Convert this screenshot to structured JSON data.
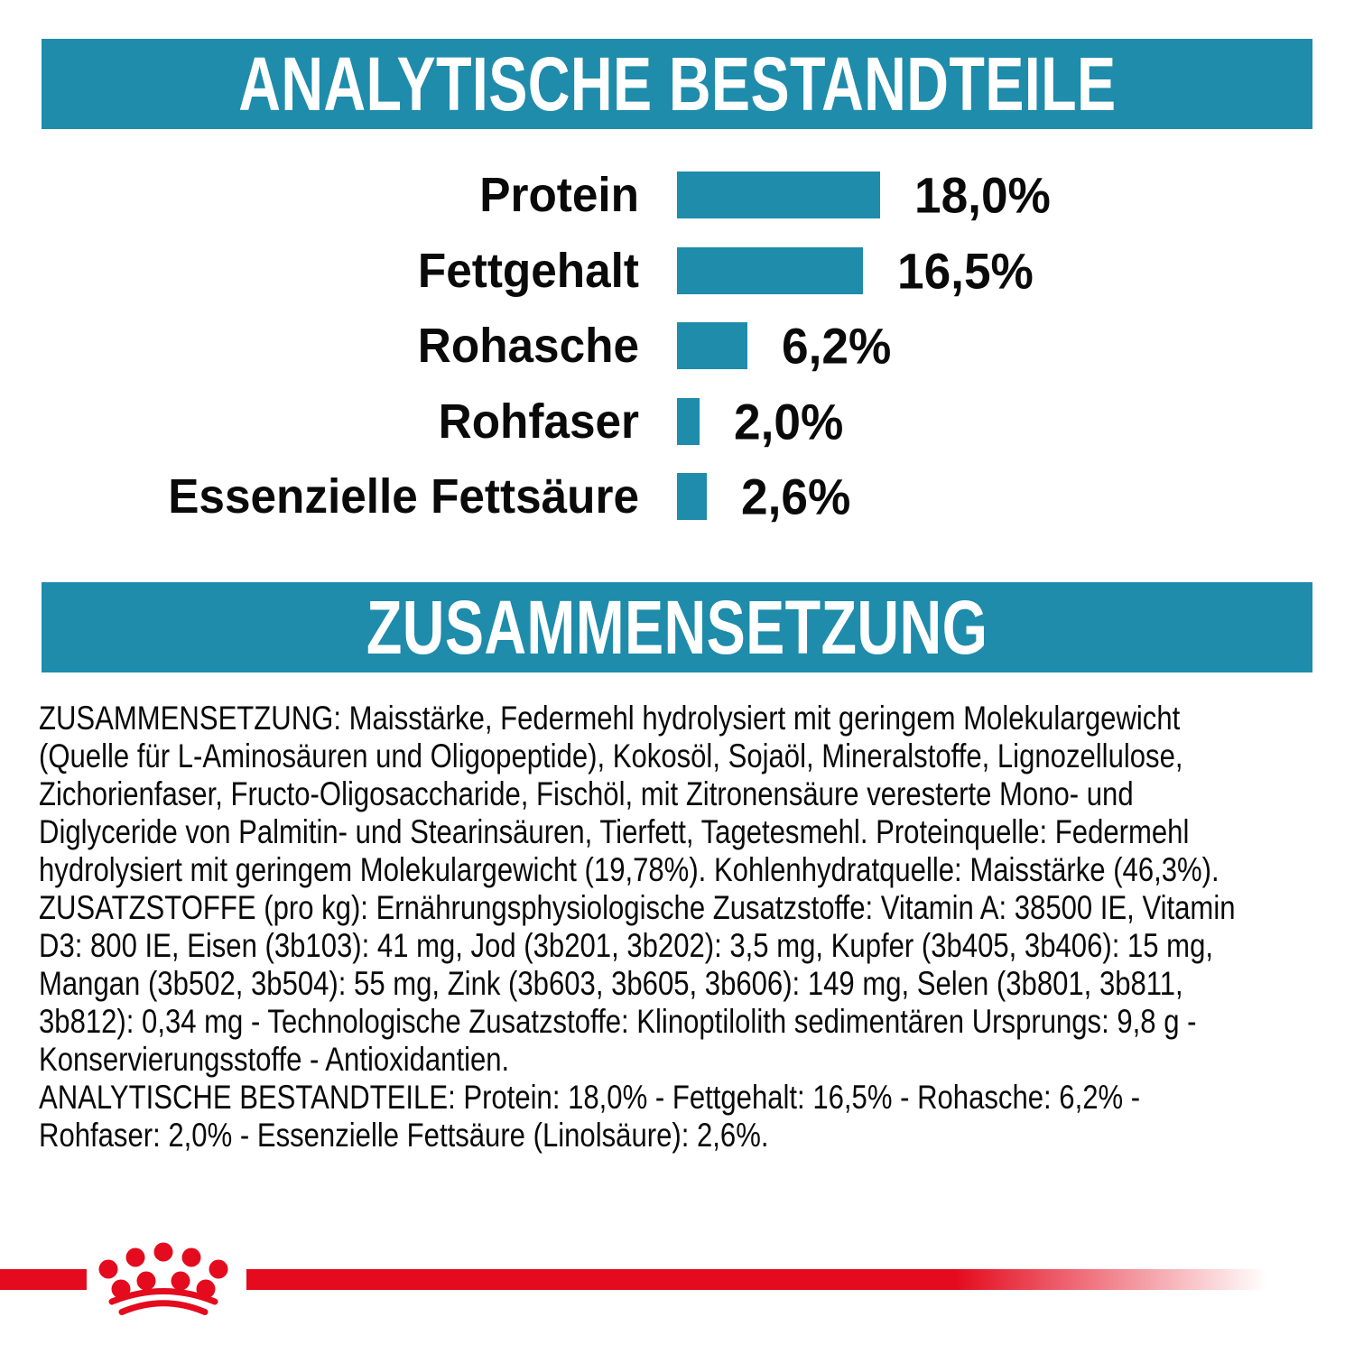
{
  "colors": {
    "teal": "#1e8caa",
    "brand_red": "#e40b1e",
    "text": "#0a0a0a"
  },
  "sections": {
    "analytical": {
      "title": "ANALYTISCHE BESTANDTEILE"
    },
    "composition": {
      "title": "ZUSAMMENSETZUNG"
    }
  },
  "chart_data": {
    "type": "bar",
    "orientation": "horizontal",
    "title": "ANALYTISCHE BESTANDTEILE",
    "categories": [
      "Protein",
      "Fettgehalt",
      "Rohasche",
      "Rohfaser",
      "Essenzielle Fettsäure"
    ],
    "values": [
      18.0,
      16.5,
      6.2,
      2.0,
      2.6
    ],
    "value_labels": [
      "18,0%",
      "16,5%",
      "6,2%",
      "2,0%",
      "2,6%"
    ],
    "unit": "%",
    "xlim": [
      0,
      18
    ],
    "bar_color": "#1e8caa",
    "grid": false,
    "legend": false
  },
  "composition_text": {
    "lines": [
      "ZUSAMMENSETZUNG: Maisstärke, Federmehl hydrolysiert mit geringem Molekulargewicht",
      "(Quelle für L-Aminosäuren und Oligopeptide), Kokosöl, Sojaöl, Mineralstoffe, Lignozellulose,",
      "Zichorienfaser, Fructo-Oligosaccharide, Fischöl, mit Zitronensäure veresterte Mono- und",
      "Diglyceride von Palmitin- und Stearinsäuren, Tierfett, Tagetesmehl. Proteinquelle: Federmehl",
      "hydrolysiert mit geringem Molekulargewicht (19,78%). Kohlenhydratquelle: Maisstärke (46,3%).",
      "ZUSATZSTOFFE (pro kg): Ernährungsphysiologische Zusatzstoffe: Vitamin A: 38500 IE, Vitamin",
      "D3: 800 IE, Eisen (3b103): 41 mg, Jod (3b201, 3b202): 3,5 mg, Kupfer (3b405, 3b406): 15 mg,",
      "Mangan (3b502, 3b504): 55 mg, Zink (3b603, 3b605, 3b606): 149 mg, Selen (3b801, 3b811,",
      "3b812): 0,34 mg - Technologische Zusatzstoffe: Klinoptilolith sedimentären Ursprungs: 9,8 g -",
      "Konservierungsstoffe - Antioxidantien.",
      "ANALYTISCHE BESTANDTEILE: Protein: 18,0% - Fettgehalt: 16,5% - Rohasche: 6,2% -",
      "Rohfaser: 2,0% - Essenzielle Fettsäure (Linolsäure): 2,6%."
    ]
  },
  "footer": {
    "logo_name": "royal-canin-crown"
  }
}
